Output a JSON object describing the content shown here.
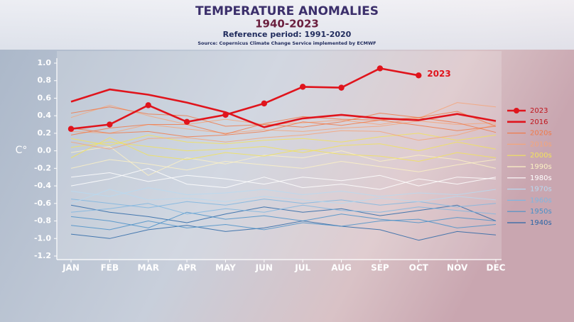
{
  "chart_data": {
    "type": "line",
    "title": "TEMPERATURE ANOMALIES",
    "subtitle": "1940-2023",
    "caption": "Reference period: 1991-2020",
    "source": "Source: Copernicus Climate Change Service implemented by ECMWF",
    "y_label": "C°",
    "annotation": "2023",
    "categories": [
      "JAN",
      "FEB",
      "MAR",
      "APR",
      "MAY",
      "JUN",
      "JUL",
      "AUG",
      "SEP",
      "OCT",
      "NOV",
      "DEC"
    ],
    "ylim": [
      -1.2,
      1.0
    ],
    "yticks": [
      {
        "value": 1,
        "label": "1.0"
      },
      0.8,
      0.6,
      0.4,
      0.2,
      {
        "value": 0,
        "label": "0.0"
      },
      -0.2,
      -0.4,
      -0.6,
      -0.8,
      {
        "value": -1,
        "label": "-1.0"
      },
      -1.2
    ],
    "series": [
      {
        "name": "2023",
        "color": "#e0141c",
        "markers": true,
        "values": [
          0.25,
          0.3,
          0.52,
          0.33,
          0.41,
          0.54,
          0.73,
          0.72,
          0.94,
          0.86,
          null,
          null
        ]
      },
      {
        "name": "2016",
        "color": "#e0141c",
        "values": [
          0.56,
          0.7,
          0.64,
          0.55,
          0.44,
          0.27,
          0.37,
          0.41,
          0.37,
          0.35,
          0.42,
          0.34
        ]
      },
      {
        "name": "2020s",
        "color": "#f07a4a",
        "lines": [
          [
            0.43,
            0.5,
            0.42,
            0.4,
            0.28,
            0.3,
            0.27,
            0.33,
            0.43,
            0.38,
            0.45,
            0.28
          ],
          [
            0.26,
            0.2,
            0.22,
            0.16,
            0.18,
            0.22,
            0.33,
            0.29,
            0.35,
            0.38,
            0.32,
            0.21
          ],
          [
            0.18,
            0.26,
            0.3,
            0.3,
            0.19,
            0.31,
            0.39,
            0.36,
            0.35,
            0.29,
            0.23,
            0.28
          ]
        ]
      },
      {
        "name": "2010s",
        "color": "#f4a57a",
        "lines": [
          [
            0.38,
            0.52,
            0.4,
            0.3,
            0.36,
            0.3,
            0.32,
            0.35,
            0.3,
            0.37,
            0.55,
            0.5
          ],
          [
            0.1,
            0.02,
            0.14,
            0.15,
            0.1,
            0.15,
            0.18,
            0.23,
            0.22,
            0.12,
            0.18,
            0.3
          ],
          [
            0.22,
            0.2,
            0.3,
            0.25,
            0.2,
            0.24,
            0.22,
            0.26,
            0.28,
            0.34,
            0.3,
            0.32
          ]
        ]
      },
      {
        "name": "2000s",
        "color": "#f2e35a",
        "lines": [
          [
            0.04,
            0.1,
            0.05,
            0.0,
            0.02,
            0.05,
            -0.02,
            0.06,
            0.08,
            0.0,
            0.1,
            0.02
          ],
          [
            -0.08,
            0.15,
            -0.05,
            -0.1,
            -0.02,
            -0.06,
            0.02,
            -0.04,
            -0.06,
            -0.12,
            -0.02,
            -0.08
          ],
          [
            0.14,
            0.06,
            0.18,
            0.1,
            0.08,
            0.12,
            0.14,
            0.1,
            0.16,
            0.2,
            0.12,
            0.18
          ]
        ]
      },
      {
        "name": "1990s",
        "color": "#fbf1c4",
        "lines": [
          [
            -0.2,
            -0.1,
            -0.15,
            -0.22,
            -0.12,
            -0.16,
            -0.2,
            -0.12,
            -0.18,
            -0.24,
            -0.16,
            -0.1
          ],
          [
            -0.02,
            0.05,
            -0.28,
            -0.08,
            -0.15,
            -0.05,
            -0.08,
            0.0,
            -0.12,
            -0.05,
            -0.1,
            -0.2
          ]
        ]
      },
      {
        "name": "1980s",
        "color": "#ffffff",
        "lines": [
          [
            -0.3,
            -0.25,
            -0.35,
            -0.28,
            -0.32,
            -0.38,
            -0.3,
            -0.34,
            -0.28,
            -0.4,
            -0.3,
            -0.32
          ],
          [
            -0.4,
            -0.32,
            -0.2,
            -0.38,
            -0.42,
            -0.3,
            -0.42,
            -0.38,
            -0.44,
            -0.32,
            -0.38,
            -0.3
          ]
        ]
      },
      {
        "name": "1970s",
        "color": "#b9d9f0",
        "lines": [
          [
            -0.46,
            -0.52,
            -0.42,
            -0.5,
            -0.48,
            -0.44,
            -0.5,
            -0.46,
            -0.52,
            -0.48,
            -0.5,
            -0.44
          ],
          [
            -0.6,
            -0.44,
            -0.56,
            -0.54,
            -0.58,
            -0.52,
            -0.56,
            -0.6,
            -0.54,
            -0.58,
            -0.52,
            -0.56
          ]
        ]
      },
      {
        "name": "1960s",
        "color": "#7fb6e0",
        "lines": [
          [
            -0.55,
            -0.6,
            -0.65,
            -0.58,
            -0.62,
            -0.55,
            -0.6,
            -0.56,
            -0.62,
            -0.58,
            -0.64,
            -0.6
          ],
          [
            -0.7,
            -0.66,
            -0.6,
            -0.72,
            -0.66,
            -0.7,
            -0.62,
            -0.68,
            -0.7,
            -0.64,
            -0.68,
            -0.72
          ]
        ]
      },
      {
        "name": "1950s",
        "color": "#4a90c8",
        "lines": [
          [
            -0.75,
            -0.8,
            -0.88,
            -0.7,
            -0.78,
            -0.74,
            -0.8,
            -0.72,
            -0.78,
            -0.82,
            -0.76,
            -0.8
          ],
          [
            -0.85,
            -0.9,
            -0.8,
            -0.88,
            -0.84,
            -0.9,
            -0.82,
            -0.86,
            -0.8,
            -0.78,
            -0.88,
            -0.84
          ]
        ]
      },
      {
        "name": "1940s",
        "color": "#2a66a6",
        "lines": [
          [
            -0.62,
            -0.7,
            -0.75,
            -0.82,
            -0.72,
            -0.64,
            -0.7,
            -0.66,
            -0.74,
            -0.68,
            -0.62,
            -0.8
          ],
          [
            -0.95,
            -1.0,
            -0.9,
            -0.85,
            -0.92,
            -0.88,
            -0.8,
            -0.86,
            -0.9,
            -1.02,
            -0.92,
            -0.96
          ]
        ]
      }
    ]
  }
}
